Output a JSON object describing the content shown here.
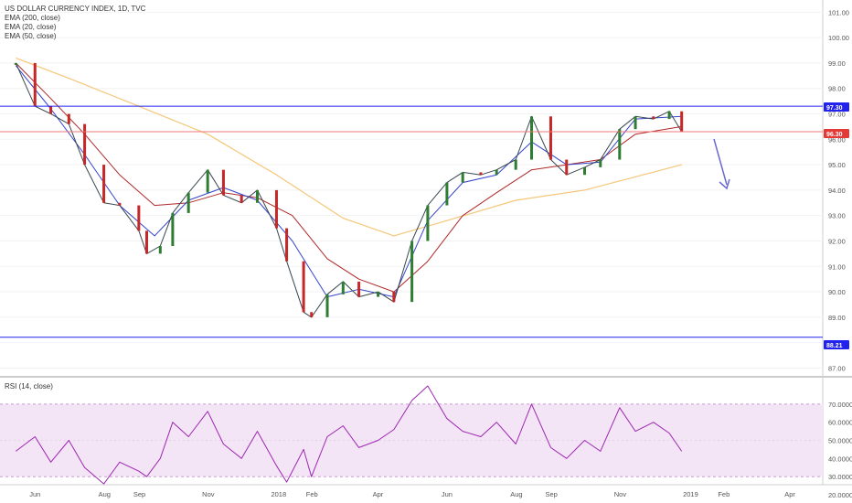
{
  "legend": {
    "title": "US DOLLAR CURRENCY INDEX, 1D, TVC",
    "ema200": "EMA (200, close)",
    "ema20": "EMA (20, close)",
    "ema50": "EMA (50, close)",
    "rsi": "RSI (14, close)"
  },
  "colors": {
    "up_candle": "#2e7d32",
    "down_candle": "#c62828",
    "ema200": "#f5c77a",
    "ema20": "#3344cc",
    "ema50": "#b02828",
    "hline_blue": "#2222ee",
    "hline_red": "#ee7777",
    "rsi_line": "#9c27b0",
    "rsi_band": "#f3e5f5",
    "arrow": "#6a6ad0"
  },
  "price_axis": {
    "ticks": [
      "101.00",
      "100.00",
      "99.00",
      "98.00",
      "97.00",
      "96.00",
      "95.00",
      "94.00",
      "93.00",
      "92.00",
      "91.00",
      "90.00",
      "89.00",
      "88.00",
      "87.00"
    ],
    "badge_upper": "97.30",
    "badge_current": "96.30",
    "badge_lower": "88.21"
  },
  "rsi_axis": {
    "ticks": [
      "70.0000",
      "60.0000",
      "50.0000",
      "40.0000",
      "30.0000",
      "20.0000"
    ]
  },
  "time_axis": {
    "labels": [
      "Jun",
      "Aug",
      "Sep",
      "Nov",
      "2018",
      "Feb",
      "Apr",
      "Jun",
      "Aug",
      "Sep",
      "Nov",
      "2019",
      "Feb",
      "Apr"
    ]
  },
  "chart_data": {
    "type": "line",
    "title": "US DOLLAR CURRENCY INDEX, 1D, TVC",
    "ylim": [
      86.8,
      101.3
    ],
    "rsi_ylim": [
      18,
      81
    ],
    "horizontal_levels": [
      97.3,
      96.3,
      88.21
    ],
    "series": [
      {
        "name": "US DOLLAR CURRENCY INDEX",
        "x": [
          "2017-05-15",
          "2017-06-01",
          "2017-06-15",
          "2017-07-01",
          "2017-07-15",
          "2017-08-01",
          "2017-08-15",
          "2017-09-01",
          "2017-09-08",
          "2017-09-20",
          "2017-10-01",
          "2017-10-15",
          "2017-11-01",
          "2017-11-15",
          "2017-12-01",
          "2017-12-15",
          "2018-01-01",
          "2018-01-10",
          "2018-01-25",
          "2018-02-01",
          "2018-02-15",
          "2018-03-01",
          "2018-03-15",
          "2018-04-01",
          "2018-04-15",
          "2018-05-01",
          "2018-05-15",
          "2018-06-01",
          "2018-06-15",
          "2018-07-01",
          "2018-07-15",
          "2018-08-01",
          "2018-08-15",
          "2018-09-01",
          "2018-09-15",
          "2018-10-01",
          "2018-10-15",
          "2018-11-01",
          "2018-11-15",
          "2018-12-01",
          "2018-12-15",
          "2018-12-26"
        ],
        "values": [
          99.0,
          97.3,
          97.0,
          96.6,
          95.0,
          93.5,
          93.4,
          92.4,
          91.5,
          91.8,
          93.1,
          93.9,
          94.8,
          93.8,
          93.5,
          94.0,
          92.5,
          91.2,
          89.2,
          89.0,
          89.9,
          90.4,
          89.8,
          90.0,
          89.6,
          92.0,
          93.4,
          94.3,
          94.7,
          94.6,
          94.8,
          95.2,
          96.9,
          95.2,
          94.6,
          94.9,
          95.2,
          96.4,
          96.9,
          96.8,
          97.1,
          96.3
        ]
      },
      {
        "name": "EMA (200, close)",
        "x": [
          "2017-05-15",
          "2017-07-01",
          "2017-09-01",
          "2017-11-01",
          "2018-01-01",
          "2018-03-01",
          "2018-04-15",
          "2018-06-01",
          "2018-08-01",
          "2018-10-01",
          "2018-12-26"
        ],
        "values": [
          99.2,
          98.4,
          97.3,
          96.2,
          94.6,
          92.9,
          92.2,
          92.8,
          93.6,
          94.0,
          95.0
        ]
      },
      {
        "name": "EMA (20, close)",
        "x": [
          "2017-05-15",
          "2017-06-15",
          "2017-07-15",
          "2017-08-15",
          "2017-09-15",
          "2017-10-15",
          "2017-11-15",
          "2017-12-15",
          "2018-01-15",
          "2018-02-15",
          "2018-03-15",
          "2018-04-15",
          "2018-05-15",
          "2018-06-15",
          "2018-07-15",
          "2018-08-15",
          "2018-09-15",
          "2018-10-15",
          "2018-11-15",
          "2018-12-26"
        ],
        "values": [
          98.9,
          97.2,
          95.4,
          93.4,
          92.2,
          93.6,
          94.1,
          93.6,
          92.0,
          89.8,
          90.1,
          89.8,
          92.8,
          94.3,
          94.6,
          95.9,
          95.0,
          95.1,
          96.8,
          96.9
        ]
      },
      {
        "name": "EMA (50, close)",
        "x": [
          "2017-05-15",
          "2017-06-15",
          "2017-07-15",
          "2017-08-15",
          "2017-09-15",
          "2017-10-15",
          "2017-11-15",
          "2017-12-15",
          "2018-01-15",
          "2018-02-15",
          "2018-03-15",
          "2018-04-15",
          "2018-05-15",
          "2018-06-15",
          "2018-07-15",
          "2018-08-15",
          "2018-09-15",
          "2018-10-15",
          "2018-11-15",
          "2018-12-26"
        ],
        "values": [
          99.0,
          97.6,
          96.2,
          94.6,
          93.4,
          93.5,
          93.9,
          93.7,
          93.0,
          91.3,
          90.5,
          90.0,
          91.2,
          93.0,
          93.9,
          94.8,
          95.0,
          95.2,
          96.2,
          96.5
        ]
      },
      {
        "name": "RSI (14, close)",
        "x": [
          "2017-05-15",
          "2017-06-01",
          "2017-06-15",
          "2017-07-01",
          "2017-07-15",
          "2017-08-01",
          "2017-08-15",
          "2017-09-01",
          "2017-09-08",
          "2017-09-20",
          "2017-10-01",
          "2017-10-15",
          "2017-11-01",
          "2017-11-15",
          "2017-12-01",
          "2017-12-15",
          "2018-01-01",
          "2018-01-10",
          "2018-01-25",
          "2018-02-01",
          "2018-02-15",
          "2018-03-01",
          "2018-03-15",
          "2018-04-01",
          "2018-04-15",
          "2018-05-01",
          "2018-05-15",
          "2018-06-01",
          "2018-06-15",
          "2018-07-01",
          "2018-07-15",
          "2018-08-01",
          "2018-08-15",
          "2018-09-01",
          "2018-09-15",
          "2018-10-01",
          "2018-10-15",
          "2018-11-01",
          "2018-11-15",
          "2018-12-01",
          "2018-12-15",
          "2018-12-26"
        ],
        "values": [
          44,
          52,
          38,
          50,
          35,
          26,
          38,
          33,
          30,
          40,
          60,
          52,
          66,
          48,
          40,
          55,
          36,
          27,
          45,
          30,
          52,
          58,
          46,
          50,
          56,
          72,
          80,
          62,
          55,
          52,
          60,
          48,
          70,
          46,
          40,
          50,
          44,
          68,
          55,
          60,
          54,
          44
        ]
      }
    ],
    "annotations": [
      "downward arrow after last candle"
    ]
  }
}
